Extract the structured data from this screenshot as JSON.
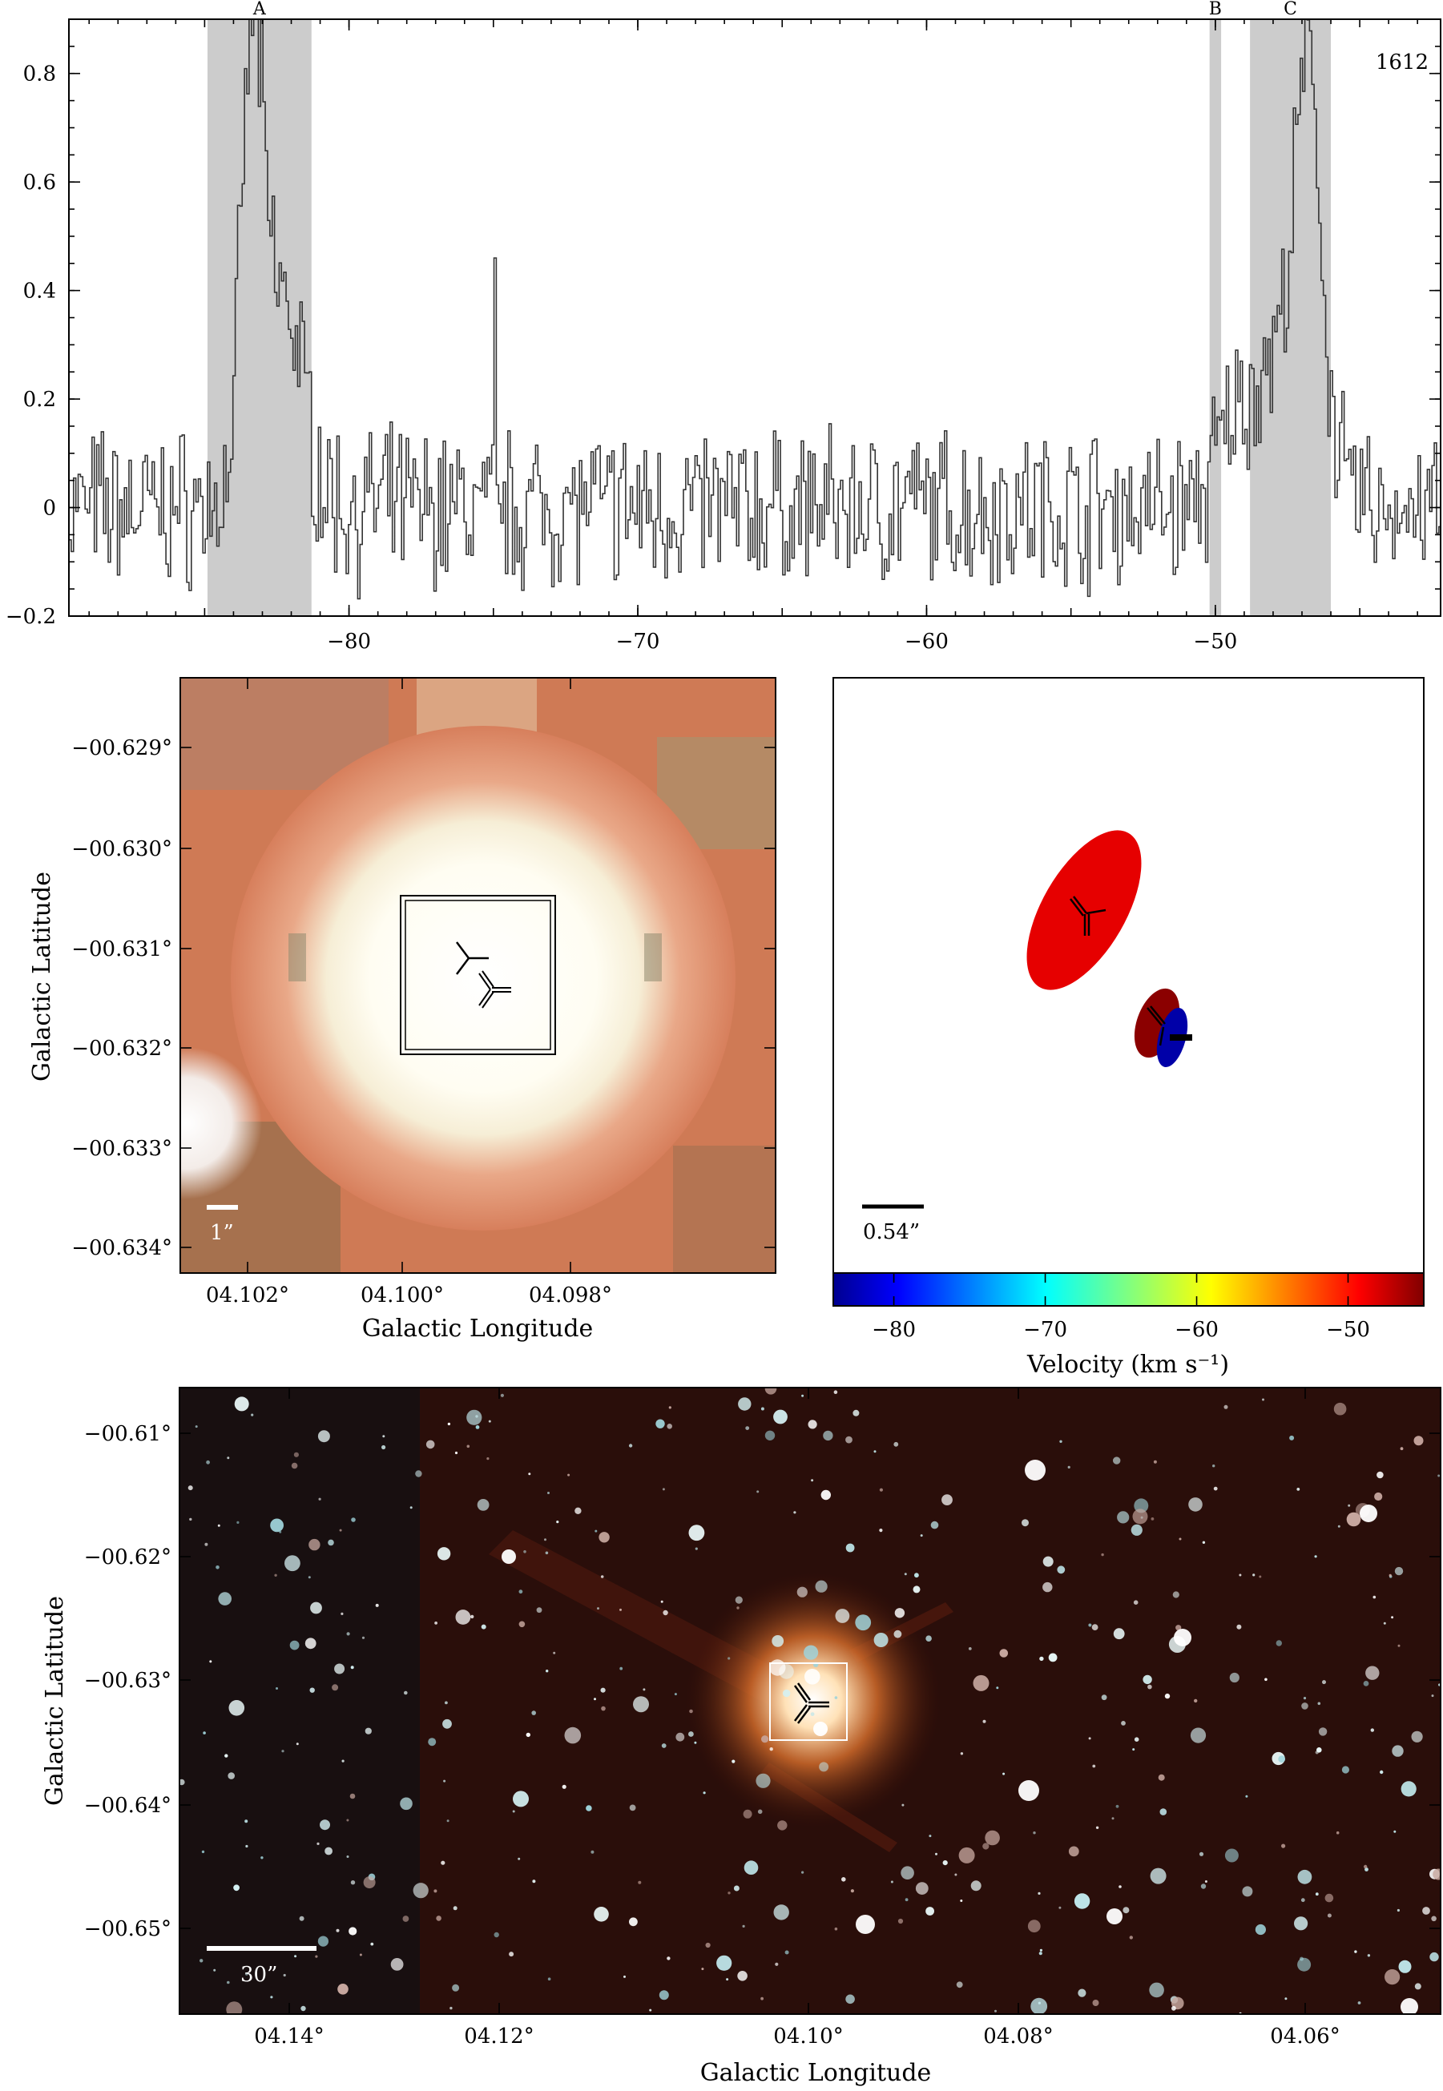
{
  "chart_data": [
    {
      "type": "line",
      "title": "",
      "xlabel": "",
      "ylabel": "",
      "annotation": "1612",
      "xlim": [
        -89.7,
        -42.2
      ],
      "ylim": [
        -0.2,
        0.9
      ],
      "xticks": [
        -80,
        -70,
        -60,
        -50
      ],
      "yticks": [
        -0.2,
        0,
        0.2,
        0.4,
        0.6,
        0.8
      ],
      "xtick_labels": [
        "−80",
        "−70",
        "−60",
        "−50"
      ],
      "ytick_labels": [
        "−0.2",
        "0",
        "0.2",
        "0.4",
        "0.6",
        "0.8"
      ],
      "shaded_regions": [
        {
          "label": "A",
          "x0": -84.9,
          "x1": -81.3
        },
        {
          "label": "B",
          "x0": -50.2,
          "x1": -49.8
        },
        {
          "label": "C",
          "x0": -48.8,
          "x1": -46.0
        }
      ],
      "features": [
        {
          "x": -83.4,
          "y": 0.87
        },
        {
          "x": -83.0,
          "y": 0.81
        },
        {
          "x": -82.2,
          "y": 0.31
        },
        {
          "x": -75.0,
          "y": 0.46
        },
        {
          "x": -46.7,
          "y": 0.78
        },
        {
          "x": -47.6,
          "y": 0.55
        }
      ]
    },
    {
      "type": "scatter",
      "xlabel": "Galactic Longitude",
      "ylabel": "Galactic Latitude",
      "xlim": [
        4.1026,
        4.0966
      ],
      "ylim": [
        -0.6343,
        -0.6283
      ],
      "xtick_labels": [
        "04.102°",
        "04.100°",
        "04.098°"
      ],
      "ytick_labels": [
        "−00.629°",
        "−00.630°",
        "−00.631°",
        "−00.632°",
        "−00.633°",
        "−00.634°"
      ],
      "scale_bar": "1”"
    },
    {
      "type": "scatter",
      "xlabel": "Velocity (km s⁻¹)",
      "scale_bar": "0.54”",
      "colorbar_range": [
        -84,
        -45
      ],
      "colorbar_ticks": [
        -80,
        -70,
        -60,
        -50
      ],
      "colorbar_tick_labels": [
        "−80",
        "−70",
        "−60",
        "−50"
      ],
      "spots": [
        {
          "velocity": -47.5,
          "color": "#e60000"
        },
        {
          "velocity": -50.0,
          "color": "#8b0000"
        },
        {
          "velocity": -83.5,
          "color": "#0000a8"
        }
      ]
    },
    {
      "type": "scatter",
      "xlabel": "Galactic Longitude",
      "ylabel": "Galactic Latitude",
      "xlim": [
        4.1495,
        4.0525
      ],
      "ylim": [
        -0.6565,
        -0.6075
      ],
      "xtick_labels": [
        "04.14°",
        "04.12°",
        "04.10°",
        "04.08°",
        "04.06°"
      ],
      "ytick_labels": [
        "−00.61°",
        "−00.62°",
        "−00.63°",
        "−00.64°",
        "−00.65°"
      ],
      "scale_bar": "30”"
    }
  ]
}
